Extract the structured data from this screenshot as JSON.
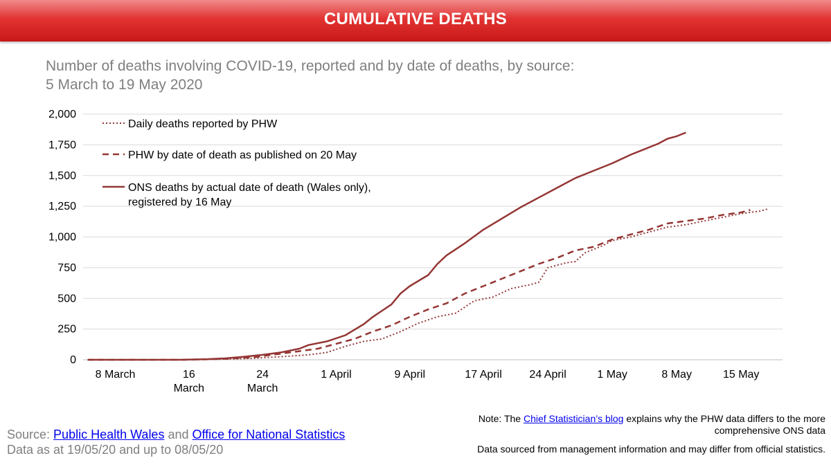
{
  "banner": {
    "title": "CUMULATIVE DEATHS"
  },
  "subtitle": {
    "line1": "Number of deaths involving COVID-19, reported and by date of deaths, by source:",
    "line2": "5 March to 19 May 2020"
  },
  "chart_data": {
    "type": "line",
    "x_start": "5 March 2020",
    "x_end": "19 May 2020",
    "ylim": [
      0,
      2000
    ],
    "yticks": [
      "0",
      "250",
      "500",
      "750",
      "1,000",
      "1,250",
      "1,500",
      "1,750",
      "2,000"
    ],
    "xticks": [
      {
        "day": 8,
        "lines": [
          "8 March"
        ]
      },
      {
        "day": 16,
        "lines": [
          "16",
          "March"
        ]
      },
      {
        "day": 24,
        "lines": [
          "24",
          "March"
        ]
      },
      {
        "day": 32,
        "lines": [
          "1 April"
        ]
      },
      {
        "day": 40,
        "lines": [
          "9 April"
        ]
      },
      {
        "day": 48,
        "lines": [
          "17 April"
        ]
      },
      {
        "day": 55,
        "lines": [
          "24 April"
        ]
      },
      {
        "day": 62,
        "lines": [
          "1 May"
        ]
      },
      {
        "day": 69,
        "lines": [
          "8 May"
        ]
      },
      {
        "day": 76,
        "lines": [
          "15 May"
        ]
      }
    ],
    "grid": true,
    "legend_position": "top-left",
    "series": [
      {
        "name": "Daily deaths reported by PHW",
        "style": "dotted",
        "color": "#943634",
        "points": [
          [
            5,
            0
          ],
          [
            16,
            0
          ],
          [
            20,
            5
          ],
          [
            23,
            12
          ],
          [
            26,
            25
          ],
          [
            29,
            40
          ],
          [
            31,
            60
          ],
          [
            33,
            110
          ],
          [
            35,
            150
          ],
          [
            37,
            170
          ],
          [
            39,
            230
          ],
          [
            41,
            300
          ],
          [
            43,
            350
          ],
          [
            45,
            380
          ],
          [
            47,
            480
          ],
          [
            49,
            510
          ],
          [
            51,
            580
          ],
          [
            53,
            610
          ],
          [
            54,
            630
          ],
          [
            55,
            750
          ],
          [
            57,
            790
          ],
          [
            58,
            800
          ],
          [
            59,
            870
          ],
          [
            61,
            930
          ],
          [
            62,
            970
          ],
          [
            64,
            1000
          ],
          [
            66,
            1040
          ],
          [
            68,
            1080
          ],
          [
            70,
            1100
          ],
          [
            72,
            1130
          ],
          [
            74,
            1160
          ],
          [
            76,
            1190
          ],
          [
            78,
            1210
          ],
          [
            79,
            1230
          ]
        ]
      },
      {
        "name": "PHW by date of death as published on 20 May",
        "style": "dashed",
        "color": "#943634",
        "points": [
          [
            5,
            0
          ],
          [
            16,
            0
          ],
          [
            20,
            8
          ],
          [
            23,
            20
          ],
          [
            25,
            40
          ],
          [
            27,
            60
          ],
          [
            30,
            90
          ],
          [
            32,
            130
          ],
          [
            34,
            170
          ],
          [
            36,
            230
          ],
          [
            38,
            280
          ],
          [
            40,
            350
          ],
          [
            42,
            410
          ],
          [
            44,
            460
          ],
          [
            46,
            540
          ],
          [
            48,
            600
          ],
          [
            50,
            660
          ],
          [
            52,
            720
          ],
          [
            54,
            780
          ],
          [
            56,
            830
          ],
          [
            58,
            890
          ],
          [
            60,
            920
          ],
          [
            62,
            980
          ],
          [
            64,
            1020
          ],
          [
            66,
            1060
          ],
          [
            68,
            1110
          ],
          [
            70,
            1130
          ],
          [
            72,
            1150
          ],
          [
            74,
            1180
          ],
          [
            76,
            1200
          ],
          [
            77,
            1220
          ]
        ]
      },
      {
        "name": "ONS deaths by actual date of death (Wales only), registered by 16 May",
        "style": "solid",
        "color": "#943634",
        "points": [
          [
            5,
            0
          ],
          [
            15,
            0
          ],
          [
            18,
            5
          ],
          [
            20,
            12
          ],
          [
            22,
            25
          ],
          [
            24,
            40
          ],
          [
            26,
            60
          ],
          [
            28,
            90
          ],
          [
            29,
            120
          ],
          [
            31,
            150
          ],
          [
            33,
            200
          ],
          [
            35,
            290
          ],
          [
            36,
            350
          ],
          [
            37,
            400
          ],
          [
            38,
            450
          ],
          [
            39,
            540
          ],
          [
            40,
            600
          ],
          [
            42,
            690
          ],
          [
            43,
            780
          ],
          [
            44,
            850
          ],
          [
            46,
            950
          ],
          [
            48,
            1060
          ],
          [
            50,
            1150
          ],
          [
            52,
            1240
          ],
          [
            54,
            1320
          ],
          [
            56,
            1400
          ],
          [
            57,
            1440
          ],
          [
            58,
            1480
          ],
          [
            60,
            1540
          ],
          [
            62,
            1600
          ],
          [
            64,
            1670
          ],
          [
            65,
            1700
          ],
          [
            67,
            1760
          ],
          [
            68,
            1800
          ],
          [
            69,
            1820
          ],
          [
            70,
            1850
          ]
        ]
      }
    ]
  },
  "legend_lines": [
    [
      "Daily deaths reported by PHW"
    ],
    [
      "PHW by date of death as published on 20 May"
    ],
    [
      "ONS deaths by actual date of death (Wales only),",
      "registered by 16 May"
    ]
  ],
  "source": {
    "prefix": "Source: ",
    "link1": "Public Health Wales",
    "and": " and ",
    "link2": "Office for National Statistics",
    "data_as_at": "Data as at 19/05/20 and up to 08/05/20"
  },
  "note": {
    "prefix": "Note: The ",
    "link": "Chief Statistician’s blog",
    "rest": " explains why the PHW data differs to the more comprehensive ONS data"
  },
  "disclaimer": "Data sourced from management information and may differ from official statistics."
}
